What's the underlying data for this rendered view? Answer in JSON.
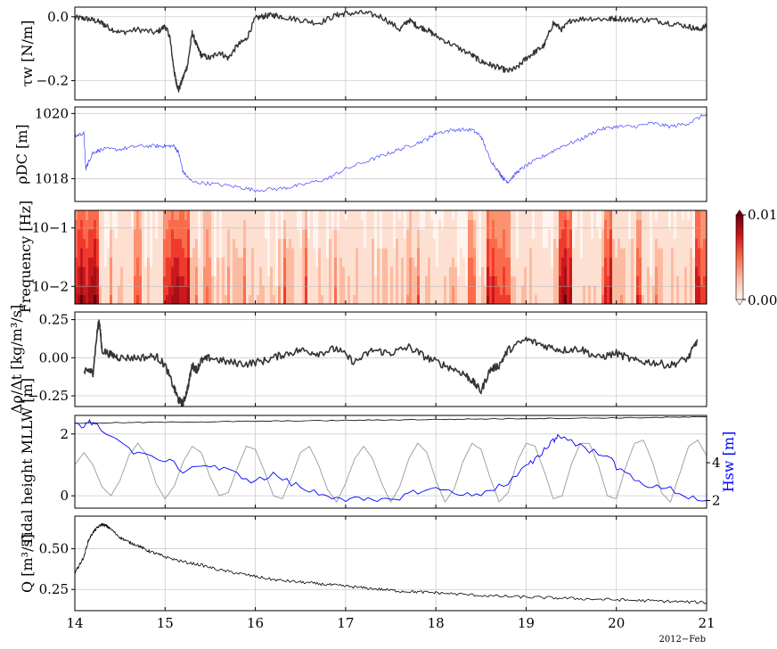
{
  "figure": {
    "date_label": "2012−Feb",
    "x_tick_labels": [
      "14",
      "15",
      "16",
      "17",
      "18",
      "19",
      "20",
      "21"
    ]
  },
  "chart_data": [
    {
      "type": "line",
      "ylabel": "τw [N/m]",
      "xlim": [
        14,
        21
      ],
      "ylim": [
        -0.26,
        0.03
      ],
      "yticks": [
        0.0,
        -0.2
      ],
      "ytick_labels": [
        "0.0",
        "−0.2"
      ],
      "grid": true,
      "series": [
        {
          "color": "#333333",
          "x": [
            14.0,
            14.1,
            14.2,
            14.3,
            14.35,
            14.5,
            14.7,
            14.9,
            15.0,
            15.05,
            15.1,
            15.12,
            15.15,
            15.2,
            15.25,
            15.3,
            15.35,
            15.4,
            15.5,
            15.6,
            15.7,
            15.8,
            15.9,
            16.0,
            16.1,
            16.2,
            16.3,
            16.5,
            16.7,
            16.9,
            17.0,
            17.2,
            17.4,
            17.6,
            17.7,
            17.8,
            17.9,
            18.0,
            18.2,
            18.4,
            18.5,
            18.6,
            18.7,
            18.8,
            18.9,
            19.0,
            19.1,
            19.2,
            19.3,
            19.4,
            19.5,
            19.7,
            19.9,
            20.0,
            20.2,
            20.4,
            20.6,
            20.8,
            20.9,
            21.0
          ],
          "y": [
            -0.003,
            -0.005,
            -0.01,
            -0.02,
            -0.03,
            -0.05,
            -0.04,
            -0.05,
            -0.03,
            -0.06,
            -0.17,
            -0.2,
            -0.23,
            -0.19,
            -0.15,
            -0.05,
            -0.09,
            -0.12,
            -0.13,
            -0.11,
            -0.13,
            -0.09,
            -0.07,
            -0.005,
            0.002,
            0.005,
            0.0,
            -0.01,
            -0.02,
            0.005,
            0.01,
            0.012,
            0.0,
            -0.04,
            -0.01,
            -0.03,
            -0.04,
            -0.06,
            -0.09,
            -0.12,
            -0.14,
            -0.15,
            -0.16,
            -0.17,
            -0.16,
            -0.13,
            -0.11,
            -0.09,
            -0.02,
            -0.04,
            -0.01,
            -0.005,
            -0.008,
            -0.005,
            -0.01,
            -0.01,
            -0.02,
            -0.03,
            -0.04,
            -0.03
          ]
        }
      ]
    },
    {
      "type": "line",
      "ylabel": "ρDC [m]",
      "xlim": [
        14,
        21
      ],
      "ylim": [
        1017.3,
        1020.2
      ],
      "yticks": [
        1018,
        1020
      ],
      "ytick_labels": [
        "1018",
        "1020"
      ],
      "grid": true,
      "series": [
        {
          "color": "#4444ff",
          "x": [
            14.0,
            14.1,
            14.12,
            14.15,
            14.2,
            14.3,
            14.5,
            14.7,
            14.9,
            15.0,
            15.1,
            15.15,
            15.2,
            15.3,
            15.5,
            15.8,
            16.0,
            16.3,
            16.5,
            16.8,
            17.0,
            17.3,
            17.5,
            17.7,
            17.9,
            18.0,
            18.2,
            18.4,
            18.5,
            18.6,
            18.7,
            18.75,
            18.8,
            18.9,
            19.0,
            19.2,
            19.4,
            19.6,
            19.8,
            20.0,
            20.2,
            20.4,
            20.6,
            20.8,
            21.0
          ],
          "y": [
            1019.3,
            1019.4,
            1018.3,
            1018.5,
            1018.8,
            1018.9,
            1018.9,
            1019.0,
            1019.0,
            1019.0,
            1019.0,
            1018.8,
            1018.2,
            1017.9,
            1017.85,
            1017.75,
            1017.65,
            1017.7,
            1017.8,
            1018.0,
            1018.3,
            1018.6,
            1018.8,
            1019.0,
            1019.2,
            1019.4,
            1019.5,
            1019.5,
            1019.3,
            1018.6,
            1018.2,
            1018.0,
            1017.9,
            1018.2,
            1018.4,
            1018.7,
            1019.0,
            1019.2,
            1019.5,
            1019.6,
            1019.6,
            1019.7,
            1019.6,
            1019.7,
            1020.0
          ]
        }
      ]
    },
    {
      "type": "heatmap",
      "ylabel": "Frequency [Hz]",
      "xlim": [
        14,
        21
      ],
      "yscale": "log",
      "ylim": [
        0.005,
        0.2
      ],
      "yticks": [
        0.1,
        0.01
      ],
      "ytick_labels": [
        "10−1",
        "10−2"
      ],
      "colormap": "Reds",
      "colorbar": {
        "min": 0.0,
        "max": 0.01,
        "tick_labels": [
          "0.00",
          "0.01"
        ]
      },
      "intense_bands": [
        {
          "x": [
            14.0,
            14.25
          ],
          "level": 0.95
        },
        {
          "x": [
            14.65,
            14.72
          ],
          "level": 0.6
        },
        {
          "x": [
            14.95,
            15.25
          ],
          "level": 0.85
        },
        {
          "x": [
            15.4,
            15.5
          ],
          "level": 0.5
        },
        {
          "x": [
            16.5,
            16.55
          ],
          "level": 0.45
        },
        {
          "x": [
            17.65,
            17.72
          ],
          "level": 0.45
        },
        {
          "x": [
            18.35,
            18.4
          ],
          "level": 0.7
        },
        {
          "x": [
            18.55,
            18.8
          ],
          "level": 0.8
        },
        {
          "x": [
            19.35,
            19.5
          ],
          "level": 0.95
        },
        {
          "x": [
            19.85,
            19.95
          ],
          "level": 0.85
        },
        {
          "x": [
            20.2,
            20.25
          ],
          "level": 0.6
        },
        {
          "x": [
            20.85,
            21.0
          ],
          "level": 0.85
        }
      ]
    },
    {
      "type": "line",
      "ylabel": "Δρ/Δt [kg/m³/s]",
      "xlim": [
        14,
        21
      ],
      "ylim": [
        -0.32,
        0.3
      ],
      "yticks": [
        0.25,
        0.0,
        -0.25
      ],
      "ytick_labels": [
        "0.25",
        "0.00",
        "−0.25"
      ],
      "grid": true,
      "series": [
        {
          "color": "#333333",
          "x": [
            14.1,
            14.15,
            14.2,
            14.25,
            14.27,
            14.3,
            14.4,
            14.5,
            14.7,
            14.9,
            15.0,
            15.1,
            15.15,
            15.2,
            15.25,
            15.3,
            15.35,
            15.4,
            15.5,
            15.7,
            15.9,
            16.1,
            16.3,
            16.5,
            16.7,
            16.9,
            17.1,
            17.3,
            17.5,
            17.7,
            17.9,
            18.1,
            18.3,
            18.4,
            18.5,
            18.6,
            18.7,
            18.8,
            19.0,
            19.2,
            19.4,
            19.6,
            19.8,
            20.0,
            20.2,
            20.4,
            20.6,
            20.8,
            20.9
          ],
          "y": [
            -0.1,
            -0.08,
            -0.1,
            0.18,
            0.25,
            0.05,
            0.02,
            0.0,
            0.0,
            0.01,
            -0.05,
            -0.2,
            -0.28,
            -0.3,
            -0.2,
            -0.05,
            -0.08,
            -0.02,
            0.0,
            -0.03,
            -0.04,
            -0.02,
            0.02,
            0.05,
            0.03,
            0.06,
            -0.03,
            0.05,
            0.03,
            0.07,
            0.0,
            -0.05,
            -0.1,
            -0.15,
            -0.22,
            -0.08,
            -0.05,
            0.05,
            0.12,
            0.08,
            0.05,
            0.06,
            0.0,
            0.03,
            -0.02,
            -0.03,
            -0.05,
            0.0,
            0.12
          ]
        }
      ]
    },
    {
      "type": "line",
      "ylabel": "Tidal height MLLW [m]",
      "ylabel_right": "Hsw [m]",
      "xlim": [
        14,
        21
      ],
      "ylim": [
        -0.4,
        2.6
      ],
      "yticks": [
        2,
        0
      ],
      "ytick_labels": [
        "2",
        "0"
      ],
      "ylim_right": [
        1.6,
        6.5
      ],
      "yticks_right": [
        4,
        2
      ],
      "ytick_labels_right": [
        "4",
        "2"
      ],
      "grid": true,
      "series": [
        {
          "axis": "left",
          "color": "#999999",
          "x": [
            14.0,
            14.1,
            14.2,
            14.3,
            14.4,
            14.5,
            14.6,
            14.7,
            14.8,
            14.9,
            15.0,
            15.1,
            15.2,
            15.3,
            15.4,
            15.5,
            15.6,
            15.7,
            15.8,
            15.9,
            16.0,
            16.1,
            16.2,
            16.3,
            16.4,
            16.5,
            16.6,
            16.7,
            16.8,
            16.9,
            17.0,
            17.1,
            17.2,
            17.3,
            17.4,
            17.5,
            17.6,
            17.7,
            17.8,
            17.9,
            18.0,
            18.1,
            18.2,
            18.3,
            18.4,
            18.5,
            18.6,
            18.7,
            18.8,
            18.9,
            19.0,
            19.1,
            19.2,
            19.3,
            19.4,
            19.5,
            19.6,
            19.7,
            19.8,
            19.9,
            20.0,
            20.1,
            20.2,
            20.3,
            20.4,
            20.5,
            20.6,
            20.7,
            20.8,
            20.9,
            21.0
          ],
          "y": [
            1.0,
            1.4,
            1.0,
            0.3,
            0.0,
            0.5,
            1.3,
            1.7,
            1.3,
            0.4,
            -0.1,
            0.3,
            1.1,
            1.6,
            1.4,
            0.6,
            0.0,
            0.1,
            0.9,
            1.6,
            1.5,
            0.8,
            0.0,
            -0.1,
            0.6,
            1.4,
            1.6,
            1.0,
            0.2,
            -0.2,
            0.4,
            1.2,
            1.6,
            1.2,
            0.4,
            -0.2,
            0.3,
            1.2,
            1.7,
            1.4,
            0.5,
            -0.2,
            0.2,
            1.1,
            1.7,
            1.5,
            0.6,
            -0.2,
            0.1,
            1.1,
            1.7,
            1.6,
            0.8,
            -0.1,
            0.0,
            1.0,
            1.7,
            1.7,
            1.0,
            0.0,
            -0.1,
            0.9,
            1.7,
            1.8,
            1.1,
            0.1,
            -0.2,
            0.7,
            1.6,
            1.8,
            1.3
          ]
        },
        {
          "axis": "left",
          "color": "#000000",
          "x": [
            14.0,
            15.0,
            16.0,
            17.0,
            18.0,
            19.0,
            20.0,
            21.0
          ],
          "y": [
            2.35,
            2.38,
            2.41,
            2.44,
            2.47,
            2.5,
            2.52,
            2.55
          ]
        },
        {
          "axis": "right",
          "color": "#0000ff",
          "x": [
            14.0,
            14.1,
            14.15,
            14.2,
            14.3,
            14.5,
            14.7,
            15.0,
            15.2,
            15.4,
            15.6,
            15.8,
            16.0,
            16.2,
            16.4,
            16.6,
            16.8,
            17.0,
            17.2,
            17.4,
            17.6,
            17.8,
            18.0,
            18.2,
            18.4,
            18.6,
            18.8,
            19.0,
            19.1,
            19.2,
            19.3,
            19.35,
            19.5,
            19.7,
            19.9,
            20.0,
            20.2,
            20.4,
            20.6,
            20.8,
            21.0
          ],
          "y": [
            6.0,
            5.9,
            6.3,
            6.0,
            5.8,
            5.1,
            4.4,
            4.2,
            3.6,
            3.9,
            3.7,
            3.4,
            3.0,
            3.4,
            2.9,
            2.5,
            2.3,
            2.1,
            2.0,
            1.95,
            2.2,
            2.5,
            2.6,
            2.5,
            2.2,
            2.6,
            2.9,
            3.8,
            4.1,
            4.7,
            5.2,
            5.4,
            5.2,
            4.6,
            4.5,
            3.7,
            3.2,
            2.7,
            2.6,
            2.2,
            2.0
          ]
        }
      ]
    },
    {
      "type": "line",
      "ylabel": "Q [m³/s]",
      "xlim": [
        14,
        21
      ],
      "ylim": [
        0.12,
        0.7
      ],
      "yticks": [
        0.5,
        0.25
      ],
      "ytick_labels": [
        "0.50",
        "0.25"
      ],
      "grid": true,
      "series": [
        {
          "color": "#000000",
          "x": [
            14.0,
            14.05,
            14.1,
            14.15,
            14.2,
            14.25,
            14.3,
            14.35,
            14.4,
            14.5,
            14.6,
            14.7,
            14.8,
            14.9,
            15.0,
            15.2,
            15.4,
            15.6,
            15.8,
            16.0,
            16.2,
            16.4,
            16.6,
            16.8,
            17.0,
            17.2,
            17.4,
            17.6,
            17.8,
            18.0,
            18.3,
            18.6,
            18.9,
            19.2,
            19.5,
            19.8,
            20.1,
            20.4,
            20.7,
            21.0
          ],
          "y": [
            0.35,
            0.4,
            0.45,
            0.55,
            0.6,
            0.63,
            0.65,
            0.64,
            0.62,
            0.57,
            0.54,
            0.52,
            0.49,
            0.47,
            0.45,
            0.42,
            0.4,
            0.37,
            0.35,
            0.33,
            0.31,
            0.3,
            0.29,
            0.28,
            0.27,
            0.26,
            0.25,
            0.24,
            0.235,
            0.23,
            0.22,
            0.21,
            0.205,
            0.2,
            0.195,
            0.19,
            0.185,
            0.18,
            0.175,
            0.17
          ]
        }
      ]
    }
  ]
}
